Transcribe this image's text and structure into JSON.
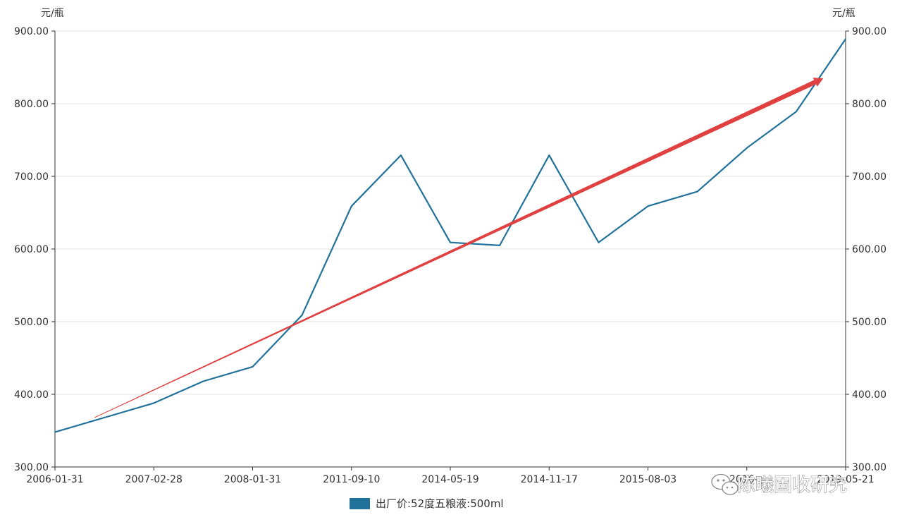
{
  "chart_data": {
    "type": "line",
    "title": "",
    "ylabel_left": "元/瓶",
    "ylabel_right": "元/瓶",
    "ylim": [
      300,
      900
    ],
    "yticks": [
      "300.00",
      "400.00",
      "500.00",
      "600.00",
      "700.00",
      "800.00",
      "900.00"
    ],
    "ytick_values": [
      300,
      400,
      500,
      600,
      700,
      800,
      900
    ],
    "x_tick_labels": [
      "2006-01-31",
      "2007-02-28",
      "2008-01-31",
      "2011-09-10",
      "2014-05-19",
      "2014-11-17",
      "2015-08-03",
      "2016-..",
      "2019-05-21"
    ],
    "x_tick_label_indices": [
      0,
      2,
      4,
      6,
      8,
      10,
      12,
      14,
      16
    ],
    "point_count": 17,
    "grid": true,
    "series": [
      {
        "name": "出厂价:52度五粮液:500ml",
        "color": "#21729b",
        "values": [
          348,
          368,
          388,
          418,
          438,
          509,
          659,
          729,
          609,
          605,
          729,
          609,
          659,
          679,
          739,
          789,
          889
        ]
      }
    ],
    "annotations": [
      {
        "type": "trend-arrow",
        "color": "#e04040",
        "from": {
          "index": 0.8,
          "value": 368
        },
        "to": {
          "index": 15.55,
          "value": 835
        }
      }
    ],
    "legend": {
      "position": "bottom-center",
      "label": "出厂价:52度五粮液:500ml"
    }
  },
  "watermark": {
    "text": "陈曦固收研究"
  }
}
